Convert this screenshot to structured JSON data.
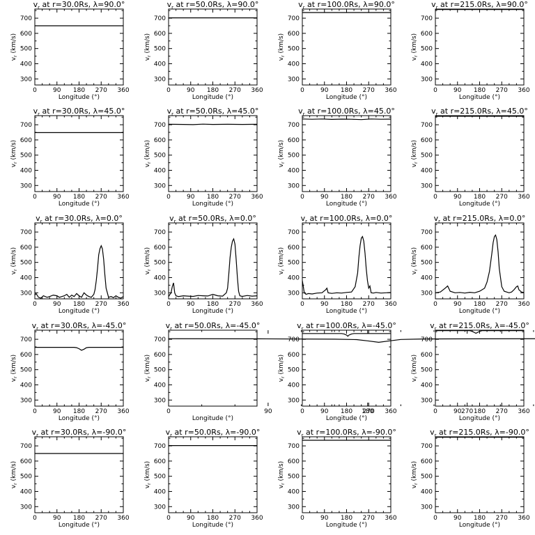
{
  "figure": {
    "xlabel": "Longitude (°)",
    "ylabel": "v",
    "ylabel_sub": "r",
    "ylabel_unit": " (km/s)",
    "xticks": [
      0,
      90,
      180,
      270,
      360
    ],
    "yticks": [
      300,
      400,
      500,
      600,
      700
    ]
  },
  "chart_data": [
    {
      "type": "line",
      "title_prefix": "v",
      "title_sub": "r",
      "title_rest": " at r=30.0Rs, λ=90.0°",
      "xlabel": "Longitude (°)",
      "ylabel": "v_r (km/s)",
      "xlim": [
        0,
        360
      ],
      "ylim": [
        260,
        760
      ],
      "series": [
        {
          "x": [
            0,
            360
          ],
          "y": [
            650,
            650
          ]
        }
      ]
    },
    {
      "type": "line",
      "title_prefix": "v",
      "title_sub": "r",
      "title_rest": " at r=50.0Rs, λ=90.0°",
      "xlabel": "Longitude (°)",
      "ylabel": "v_r (km/s)",
      "xlim": [
        0,
        360
      ],
      "ylim": [
        260,
        760
      ],
      "series": [
        {
          "x": [
            0,
            360
          ],
          "y": [
            702,
            702
          ]
        }
      ]
    },
    {
      "type": "line",
      "title_prefix": "v",
      "title_sub": "r",
      "title_rest": " at r=100.0Rs, λ=90.0°",
      "xlabel": "Longitude (°)",
      "ylabel": "v_r (km/s)",
      "xlim": [
        0,
        360
      ],
      "ylim": [
        260,
        760
      ],
      "series": [
        {
          "x": [
            0,
            360
          ],
          "y": [
            737,
            737
          ]
        }
      ]
    },
    {
      "type": "line",
      "title_prefix": "v",
      "title_sub": "r",
      "title_rest": " at r=215.0Rs, λ=90.0°",
      "xlabel": "Longitude (°)",
      "ylabel": "v_r (km/s)",
      "xlim": [
        0,
        360
      ],
      "ylim": [
        260,
        760
      ],
      "series": [
        {
          "x": [
            0,
            360
          ],
          "y": [
            757,
            757
          ]
        }
      ]
    },
    {
      "type": "line",
      "title_prefix": "v",
      "title_sub": "r",
      "title_rest": " at r=30.0Rs, λ=45.0°",
      "xlabel": "Longitude (°)",
      "ylabel": "v_r (km/s)",
      "xlim": [
        0,
        360
      ],
      "ylim": [
        260,
        760
      ],
      "series": [
        {
          "x": [
            0,
            360
          ],
          "y": [
            648,
            648
          ]
        }
      ]
    },
    {
      "type": "line",
      "title_prefix": "v",
      "title_sub": "r",
      "title_rest": " at r=50.0Rs, λ=45.0°",
      "xlabel": "Longitude (°)",
      "ylabel": "v_r (km/s)",
      "xlim": [
        0,
        360
      ],
      "ylim": [
        260,
        760
      ],
      "series": [
        {
          "x": [
            0,
            60,
            100,
            140,
            180,
            240,
            300,
            360
          ],
          "y": [
            703,
            702,
            701,
            704,
            702,
            703,
            702,
            703
          ]
        }
      ]
    },
    {
      "type": "line",
      "title_prefix": "v",
      "title_sub": "r",
      "title_rest": " at r=100.0Rs, λ=45.0°",
      "xlabel": "Longitude (°)",
      "ylabel": "v_r (km/s)",
      "xlim": [
        0,
        360
      ],
      "ylim": [
        260,
        760
      ],
      "series": [
        {
          "x": [
            0,
            40,
            80,
            120,
            160,
            200,
            240,
            280,
            320,
            360
          ],
          "y": [
            738,
            736,
            738,
            735,
            737,
            736,
            734,
            738,
            736,
            737
          ]
        }
      ]
    },
    {
      "type": "line",
      "title_prefix": "v",
      "title_sub": "r",
      "title_rest": " at r=215.0Rs, λ=45.0°",
      "xlabel": "Longitude (°)",
      "ylabel": "v_r (km/s)",
      "xlim": [
        0,
        360
      ],
      "ylim": [
        260,
        760
      ],
      "series": [
        {
          "x": [
            0,
            360
          ],
          "y": [
            756,
            756
          ]
        }
      ]
    },
    {
      "type": "line",
      "title_prefix": "v",
      "title_sub": "r",
      "title_rest": " at r=30.0Rs, λ=0.0°",
      "xlabel": "Longitude (°)",
      "ylabel": "v_r (km/s)",
      "xlim": [
        0,
        360
      ],
      "ylim": [
        260,
        760
      ],
      "series": [
        {
          "x": [
            0,
            5,
            15,
            25,
            35,
            50,
            60,
            75,
            90,
            100,
            110,
            120,
            130,
            140,
            150,
            160,
            170,
            180,
            190,
            200,
            210,
            220,
            230,
            240,
            245,
            250,
            255,
            260,
            265,
            270,
            275,
            280,
            285,
            290,
            295,
            300,
            310,
            320,
            330,
            340,
            350,
            360
          ],
          "y": [
            285,
            295,
            270,
            265,
            280,
            270,
            275,
            285,
            280,
            270,
            275,
            280,
            290,
            270,
            285,
            275,
            295,
            280,
            270,
            300,
            285,
            275,
            270,
            290,
            320,
            380,
            460,
            550,
            590,
            610,
            590,
            520,
            420,
            330,
            300,
            270,
            275,
            268,
            280,
            270,
            265,
            275
          ]
        }
      ]
    },
    {
      "type": "line",
      "title_prefix": "v",
      "title_sub": "r",
      "title_rest": " at r=50.0Rs, λ=0.0°",
      "xlabel": "Longitude (°)",
      "ylabel": "v_r (km/s)",
      "xlim": [
        0,
        360
      ],
      "ylim": [
        260,
        760
      ],
      "series": [
        {
          "x": [
            0,
            10,
            15,
            20,
            25,
            30,
            40,
            60,
            80,
            100,
            120,
            140,
            160,
            180,
            200,
            220,
            235,
            240,
            245,
            250,
            255,
            260,
            265,
            270,
            275,
            280,
            285,
            290,
            300,
            320,
            340,
            360
          ],
          "y": [
            275,
            300,
            340,
            365,
            300,
            280,
            275,
            280,
            278,
            276,
            282,
            280,
            279,
            290,
            280,
            278,
            300,
            330,
            420,
            530,
            600,
            640,
            655,
            620,
            520,
            400,
            310,
            280,
            276,
            282,
            278,
            280
          ]
        }
      ]
    },
    {
      "type": "line",
      "title_prefix": "v",
      "title_sub": "r",
      "title_rest": " at r=100.0Rs, λ=0.0°",
      "xlabel": "Longitude (°)",
      "ylabel": "v_r (km/s)",
      "xlim": [
        0,
        360
      ],
      "ylim": [
        260,
        760
      ],
      "series": [
        {
          "x": [
            0,
            3,
            8,
            15,
            25,
            40,
            60,
            80,
            95,
            100,
            105,
            120,
            140,
            160,
            180,
            200,
            215,
            225,
            230,
            235,
            240,
            245,
            250,
            255,
            260,
            265,
            270,
            275,
            280,
            290,
            300,
            320,
            340,
            360
          ],
          "y": [
            380,
            350,
            300,
            290,
            295,
            292,
            298,
            300,
            320,
            330,
            300,
            296,
            300,
            298,
            302,
            305,
            340,
            430,
            530,
            610,
            660,
            670,
            640,
            560,
            460,
            380,
            330,
            345,
            300,
            298,
            302,
            298,
            300,
            302
          ]
        }
      ]
    },
    {
      "type": "line",
      "title_prefix": "v",
      "title_sub": "r",
      "title_rest": " at r=215.0Rs, λ=0.0°",
      "xlabel": "Longitude (°)",
      "ylabel": "v_r (km/s)",
      "xlim": [
        0,
        360
      ],
      "ylim": [
        260,
        760
      ],
      "series": [
        {
          "x": [
            0,
            20,
            40,
            50,
            60,
            80,
            100,
            120,
            140,
            160,
            180,
            200,
            210,
            220,
            230,
            235,
            240,
            245,
            250,
            255,
            260,
            270,
            280,
            290,
            300,
            310,
            320,
            330,
            335,
            340,
            350,
            360
          ],
          "y": [
            300,
            305,
            330,
            345,
            310,
            300,
            302,
            298,
            303,
            300,
            310,
            330,
            370,
            440,
            560,
            630,
            670,
            680,
            650,
            570,
            460,
            340,
            310,
            305,
            300,
            305,
            320,
            340,
            345,
            320,
            305,
            302
          ]
        }
      ]
    },
    {
      "type": "line",
      "title_prefix": "v",
      "title_sub": "r",
      "title_rest": " at r=30.0Rs, λ=-45.0°",
      "xlabel": "Longitude (°)",
      "ylabel": "v_r (km/s)",
      "xlim": [
        0,
        360
      ],
      "ylim": [
        260,
        760
      ],
      "series": [
        {
          "x": [
            0,
            160,
            170,
            180,
            190,
            200,
            210,
            220,
            360
          ],
          "y": [
            647,
            647,
            645,
            638,
            628,
            635,
            645,
            647,
            647
          ]
        }
      ]
    },
    {
      "type": "line",
      "title_prefix": "v",
      "title_sub": "r",
      "title_rest": " at r=50.0Rs, λ=-45.0°",
      "xlabel": "Longitude (°)",
      "ylabel": "v_r (km/s)",
      "xlim": [
        0,
        80,
        150,
        170,
        180,
        190,
        200,
        210,
        230,
        280,
        360
      ],
      "ylim": [
        260,
        760
      ],
      "series": [
        {
          "x": [
            0,
            80,
            150,
            170,
            180,
            190,
            200,
            210,
            230,
            280,
            360
          ],
          "y": [
            704,
            703,
            701,
            698,
            690,
            680,
            690,
            699,
            702,
            703,
            704
          ]
        }
      ]
    },
    {
      "type": "line",
      "title_prefix": "v",
      "title_sub": "r",
      "title_rest": " at r=100.0Rs, λ=-45.0°",
      "xlabel": "Longitude (°)",
      "ylabel": "v_r (km/s)",
      "xlim": [
        0,
        360
      ],
      "ylim": [
        260,
        760
      ],
      "series": [
        {
          "x": [
            0,
            160,
            170,
            180,
            185,
            190,
            200,
            210,
            360
          ],
          "y": [
            738,
            738,
            735,
            728,
            720,
            728,
            735,
            738,
            738
          ]
        }
      ]
    },
    {
      "type": "line",
      "title_prefix": "v",
      "title_sub": "r",
      "title_rest": " at r=215.0Rs, λ=-45.0°",
      "xlabel": "Longitude (°)",
      "ylabel": "v_r (km/s)",
      "xlim": [
        0,
        360
      ],
      "ylim": [
        260,
        760
      ],
      "series": [
        {
          "x": [
            0,
            140,
            150,
            160,
            165,
            170,
            180,
            190,
            360
          ],
          "y": [
            757,
            757,
            752,
            744,
            740,
            744,
            752,
            757,
            757
          ]
        }
      ]
    },
    {
      "type": "line",
      "title_prefix": "v",
      "title_sub": "r",
      "title_rest": " at r=30.0Rs, λ=-90.0°",
      "xlabel": "Longitude (°)",
      "ylabel": "v_r (km/s)",
      "xlim": [
        0,
        360
      ],
      "ylim": [
        260,
        760
      ],
      "series": [
        {
          "x": [
            0,
            360
          ],
          "y": [
            650,
            650
          ]
        }
      ]
    },
    {
      "type": "line",
      "title_prefix": "v",
      "title_sub": "r",
      "title_rest": " at r=50.0Rs, λ=-90.0°",
      "xlabel": "Longitude (°)",
      "ylabel": "v_r (km/s)",
      "xlim": [
        0,
        360
      ],
      "ylim": [
        260,
        760
      ],
      "series": [
        {
          "x": [
            0,
            360
          ],
          "y": [
            702,
            702
          ]
        }
      ]
    },
    {
      "type": "line",
      "title_prefix": "v",
      "title_sub": "r",
      "title_rest": " at r=100.0Rs, λ=-90.0°",
      "xlabel": "Longitude (°)",
      "ylabel": "v_r (km/s)",
      "xlim": [
        0,
        360
      ],
      "ylim": [
        260,
        760
      ],
      "series": [
        {
          "x": [
            0,
            360
          ],
          "y": [
            737,
            737
          ]
        }
      ]
    },
    {
      "type": "line",
      "title_prefix": "v",
      "title_sub": "r",
      "title_rest": " at r=215.0Rs, λ=-90.0°",
      "xlabel": "Longitude (°)",
      "ylabel": "v_r (km/s)",
      "xlim": [
        0,
        360
      ],
      "ylim": [
        260,
        760
      ],
      "series": [
        {
          "x": [
            0,
            360
          ],
          "y": [
            757,
            757
          ]
        }
      ]
    }
  ]
}
